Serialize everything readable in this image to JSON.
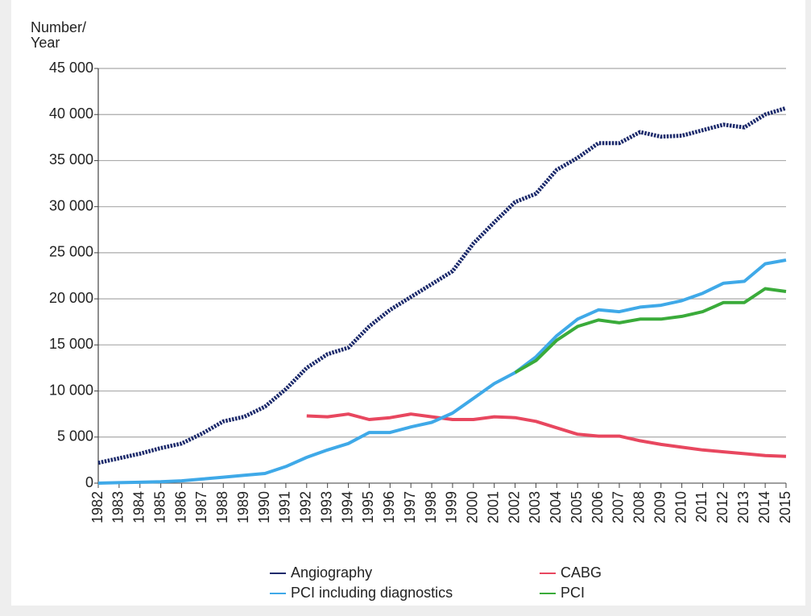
{
  "chart_data": {
    "type": "line",
    "ylabel_lines": [
      "Number/",
      "Year"
    ],
    "x": [
      1982,
      1983,
      1984,
      1985,
      1986,
      1987,
      1988,
      1989,
      1990,
      1991,
      1992,
      1993,
      1994,
      1995,
      1996,
      1997,
      1998,
      1999,
      2000,
      2001,
      2002,
      2003,
      2004,
      2005,
      2006,
      2007,
      2008,
      2009,
      2010,
      2011,
      2012,
      2013,
      2014,
      2015
    ],
    "xlim": [
      1982,
      2015
    ],
    "xticks": [
      1982,
      1983,
      1984,
      1985,
      1986,
      1987,
      1988,
      1989,
      1990,
      1991,
      1992,
      1993,
      1994,
      1995,
      1996,
      1997,
      1998,
      1999,
      2000,
      2001,
      2002,
      2003,
      2004,
      2005,
      2006,
      2007,
      2008,
      2009,
      2010,
      2011,
      2012,
      2013,
      2014,
      2015
    ],
    "ylim": [
      0,
      45000
    ],
    "yticks": [
      0,
      {
        "value": 5000,
        "label": "5 000"
      },
      {
        "value": 10000,
        "label": "10 000"
      },
      {
        "value": 15000,
        "label": "15 000"
      },
      {
        "value": 20000,
        "label": "20 000"
      },
      {
        "value": 25000,
        "label": "25 000"
      },
      {
        "value": 30000,
        "label": "30 000"
      },
      {
        "value": 35000,
        "label": "35 000"
      },
      {
        "value": 40000,
        "label": "40 000"
      },
      {
        "value": 45000,
        "label": "45 000"
      }
    ],
    "grid": true,
    "series": [
      {
        "name": "Angiography",
        "color": "#1c2a6b",
        "style": "dotted",
        "values": [
          2200,
          2700,
          3200,
          3800,
          4300,
          5400,
          6700,
          7200,
          8300,
          10200,
          12500,
          14000,
          14700,
          17000,
          18800,
          20200,
          21600,
          23000,
          26000,
          28300,
          30500,
          31400,
          34000,
          35300,
          36900,
          36900,
          38100,
          37600,
          37700,
          38300,
          38900,
          38600,
          40000,
          40700
        ]
      },
      {
        "name": "CABG",
        "color": "#e8475f",
        "style": "solid",
        "values": [
          null,
          null,
          null,
          null,
          null,
          null,
          null,
          null,
          null,
          null,
          7300,
          7200,
          7500,
          6900,
          7100,
          7500,
          7200,
          6900,
          6900,
          7200,
          7100,
          6700,
          6000,
          5300,
          5100,
          5100,
          4600,
          4200,
          3900,
          3600,
          3400,
          3200,
          3000,
          2900
        ]
      },
      {
        "name": "PCI including diagnostics",
        "color": "#3fa9e8",
        "style": "solid",
        "values": [
          0,
          50,
          100,
          150,
          250,
          450,
          650,
          850,
          1050,
          1800,
          2800,
          3600,
          4300,
          5500,
          5500,
          6100,
          6600,
          7600,
          9200,
          10800,
          12000,
          13700,
          16000,
          17800,
          18800,
          18600,
          19100,
          19300,
          19800,
          20600,
          21700,
          21900,
          23800,
          24200
        ]
      },
      {
        "name": "PCI",
        "color": "#3aab3a",
        "style": "solid",
        "values": [
          null,
          null,
          null,
          null,
          null,
          null,
          null,
          null,
          null,
          null,
          null,
          null,
          null,
          null,
          null,
          null,
          null,
          null,
          null,
          null,
          12000,
          13300,
          15500,
          17000,
          17700,
          17400,
          17800,
          17800,
          18100,
          18600,
          19600,
          19600,
          21100,
          20800
        ]
      }
    ]
  }
}
